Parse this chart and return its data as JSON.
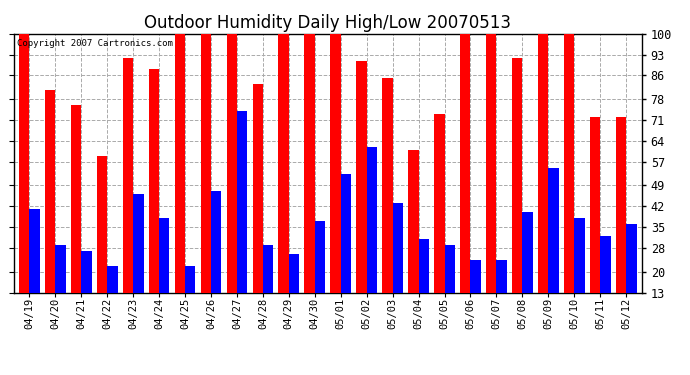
{
  "title": "Outdoor Humidity Daily High/Low 20070513",
  "copyright": "Copyright 2007 Cartronics.com",
  "dates": [
    "04/19",
    "04/20",
    "04/21",
    "04/22",
    "04/23",
    "04/24",
    "04/25",
    "04/26",
    "04/27",
    "04/28",
    "04/29",
    "04/30",
    "05/01",
    "05/02",
    "05/03",
    "05/04",
    "05/05",
    "05/06",
    "05/07",
    "05/08",
    "05/09",
    "05/10",
    "05/11",
    "05/12"
  ],
  "highs": [
    100,
    81,
    76,
    59,
    92,
    88,
    100,
    100,
    100,
    83,
    100,
    100,
    100,
    91,
    85,
    61,
    73,
    100,
    100,
    92,
    100,
    100,
    72,
    72
  ],
  "lows": [
    41,
    29,
    27,
    22,
    46,
    38,
    22,
    47,
    74,
    29,
    26,
    37,
    53,
    62,
    43,
    31,
    29,
    24,
    24,
    40,
    55,
    38,
    32,
    36
  ],
  "bar_color_high": "#ff0000",
  "bar_color_low": "#0000ff",
  "bg_color": "#ffffff",
  "grid_color": "#aaaaaa",
  "title_fontsize": 12,
  "yticks": [
    13,
    20,
    28,
    35,
    42,
    49,
    57,
    64,
    71,
    78,
    86,
    93,
    100
  ],
  "ylim_min": 13,
  "ylim_max": 100,
  "bar_width": 0.4
}
